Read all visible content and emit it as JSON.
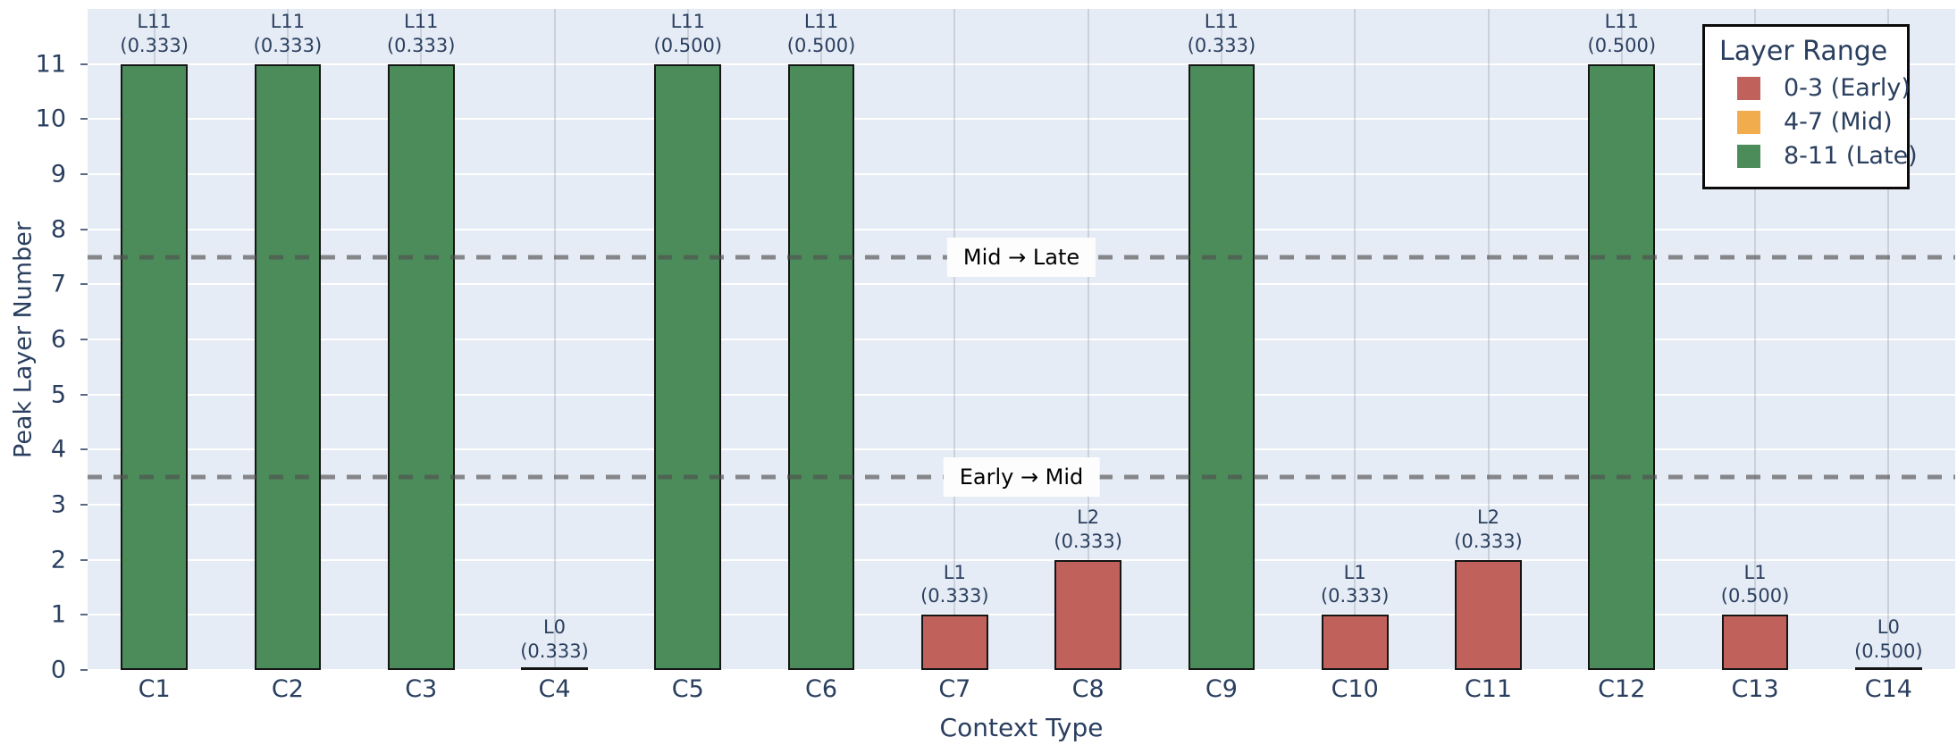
{
  "chart_data": {
    "type": "bar",
    "xlabel": "Context Type",
    "ylabel": "Peak Layer Number",
    "ylim": [
      0,
      12
    ],
    "yticks": [
      0,
      1,
      2,
      3,
      4,
      5,
      6,
      7,
      8,
      9,
      10,
      11
    ],
    "grid": "on",
    "categories": [
      "C1",
      "C2",
      "C3",
      "C4",
      "C5",
      "C6",
      "C7",
      "C8",
      "C9",
      "C10",
      "C11",
      "C12",
      "C13",
      "C14"
    ],
    "values": [
      11,
      11,
      11,
      0,
      11,
      11,
      1,
      2,
      11,
      1,
      2,
      11,
      1,
      0
    ],
    "bar_layer_labels": [
      "L11",
      "L11",
      "L11",
      "L0",
      "L11",
      "L11",
      "L1",
      "L2",
      "L11",
      "L1",
      "L2",
      "L11",
      "L1",
      "L0"
    ],
    "bar_weight_labels": [
      "(0.333)",
      "(0.333)",
      "(0.333)",
      "(0.333)",
      "(0.500)",
      "(0.500)",
      "(0.333)",
      "(0.333)",
      "(0.333)",
      "(0.333)",
      "(0.333)",
      "(0.500)",
      "(0.500)",
      "(0.500)"
    ],
    "bar_groups": [
      "late",
      "late",
      "late",
      "early",
      "late",
      "late",
      "early",
      "early",
      "late",
      "early",
      "early",
      "late",
      "early",
      "early"
    ],
    "reference_lines": [
      {
        "y": 7.5,
        "label": "Mid → Late"
      },
      {
        "y": 3.5,
        "label": "Early → Mid"
      }
    ],
    "legend_position": "top-right"
  },
  "colors": {
    "early": "#c0615c",
    "mid": "#f1ac4e",
    "late": "#4c8c5a",
    "plot_background": "#e6ecf5",
    "text": "#2a3f5f",
    "bar_edge": "#151515",
    "reference_line": "rgba(80,80,80,0.65)"
  },
  "legend": {
    "title": "Layer Range",
    "entries": [
      {
        "label": "0-3 (Early)",
        "color": "#c0615c"
      },
      {
        "label": "4-7 (Mid)",
        "color": "#f1ac4e"
      },
      {
        "label": "8-11 (Late)",
        "color": "#4c8c5a"
      }
    ]
  }
}
